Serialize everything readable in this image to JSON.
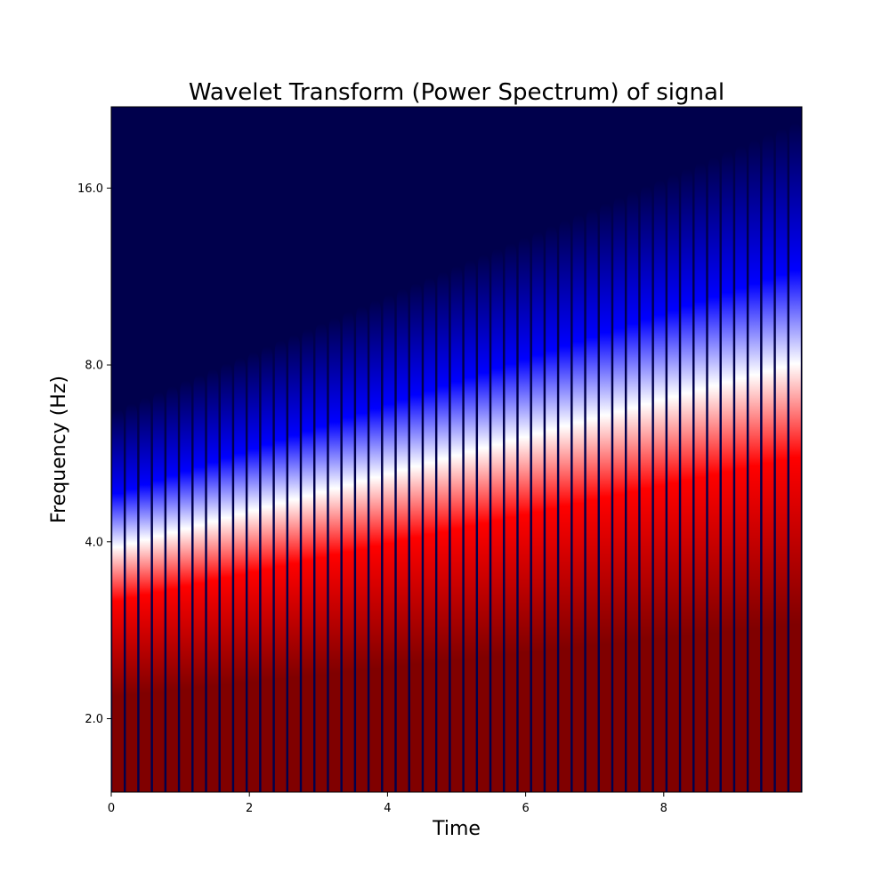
{
  "chart_data": {
    "type": "heatmap",
    "title": "Wavelet Transform (Power Spectrum) of signal",
    "xlabel": "Time",
    "ylabel": "Frequency (Hz)",
    "xlim": [
      0,
      10
    ],
    "ylim": [
      1.5,
      22
    ],
    "yscale": "log2",
    "x_ticks": [
      0,
      2,
      4,
      6,
      8
    ],
    "x_tick_labels": [
      "0",
      "2",
      "4",
      "6",
      "8"
    ],
    "y_ticks": [
      2.0,
      4.0,
      8.0,
      16.0
    ],
    "y_tick_labels": [
      "2.0",
      "4.0",
      "8.0",
      "16.0"
    ],
    "colormap": "seismic",
    "colormap_stops": [
      "#00004c",
      "#0000ff",
      "#ffffff",
      "#ff0000",
      "#800000"
    ],
    "background_color": "#00004c",
    "ridge_frequency_start_hz": 3.5,
    "ridge_frequency_end_hz": 11,
    "oscillation_lobes": 51,
    "grid": false,
    "legend": "none"
  }
}
